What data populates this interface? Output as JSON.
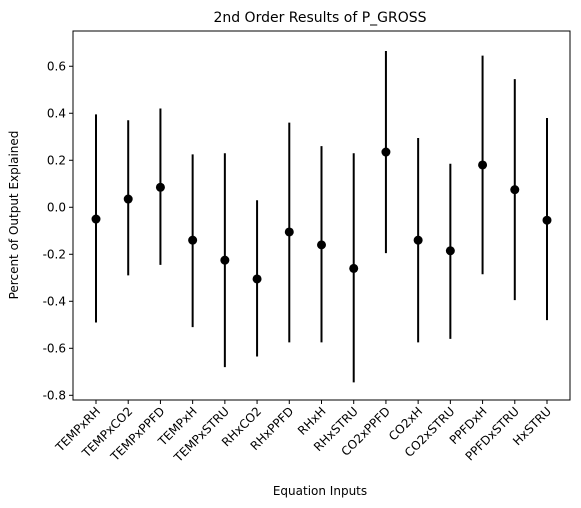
{
  "chart_data": {
    "type": "scatter",
    "title": "2nd Order Results of P_GROSS",
    "xlabel": "Equation Inputs",
    "ylabel": "Percent of Output Explained",
    "ylim": [
      -0.82,
      0.75
    ],
    "yticks": [
      "-0.8",
      "-0.6",
      "-0.4",
      "-0.2",
      "0.0",
      "0.2",
      "0.4",
      "0.6"
    ],
    "grid": false,
    "marker_color": "#000000",
    "categories": [
      "TEMPxRH",
      "TEMPxCO2",
      "TEMPxPPFD",
      "TEMPxH",
      "TEMPxSTRU",
      "RHxCO2",
      "RHxPPFD",
      "RHxH",
      "RHxSTRU",
      "CO2xPPFD",
      "CO2xH",
      "CO2xSTRU",
      "PPFDxH",
      "PPFDxSTRU",
      "HxSTRU"
    ],
    "values": [
      -0.05,
      0.035,
      0.085,
      -0.14,
      -0.225,
      -0.305,
      -0.105,
      -0.16,
      -0.26,
      0.235,
      -0.14,
      -0.185,
      0.18,
      0.075,
      -0.055
    ],
    "error_low": [
      -0.49,
      -0.29,
      -0.245,
      -0.51,
      -0.68,
      -0.635,
      -0.575,
      -0.575,
      -0.745,
      -0.195,
      -0.575,
      -0.56,
      -0.285,
      -0.395,
      -0.48
    ],
    "error_high": [
      0.395,
      0.37,
      0.42,
      0.225,
      0.23,
      0.03,
      0.36,
      0.26,
      0.23,
      0.665,
      0.295,
      0.185,
      0.645,
      0.545,
      0.38
    ]
  }
}
